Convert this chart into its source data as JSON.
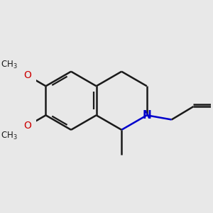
{
  "background_color": "#e8e8e8",
  "bond_color": "#1a1a1a",
  "N_color": "#0000cc",
  "O_color": "#cc0000",
  "bond_width": 1.8,
  "font_size": 10,
  "fig_size": [
    3.0,
    3.0
  ],
  "dpi": 100,
  "xlim": [
    -3.2,
    2.8
  ],
  "ylim": [
    -2.2,
    2.2
  ]
}
